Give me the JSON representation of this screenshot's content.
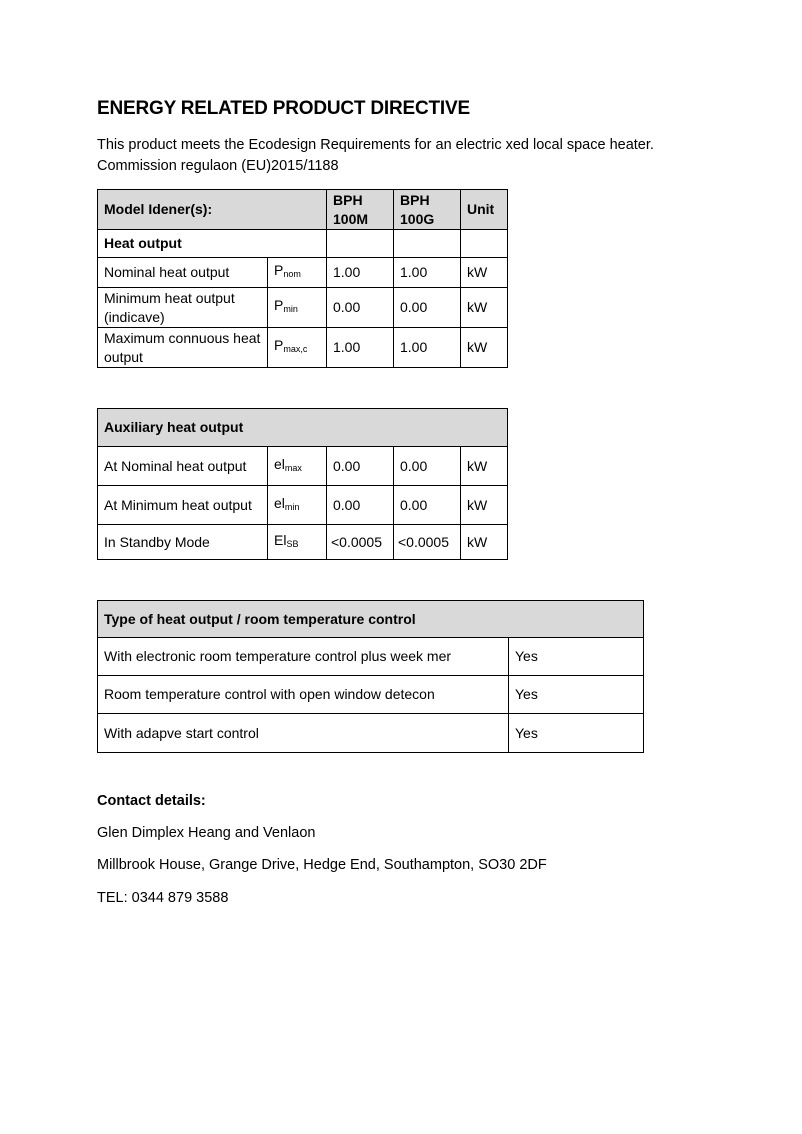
{
  "title": "ENERGY RELATED PRODUCT DIRECTIVE",
  "intro": [
    "This product meets the Ecodesign Requirements for an electric xed local space heater.",
    "Commission regulaon (EU)2015/1188"
  ],
  "table1": {
    "header": {
      "label": "Model Idener(s):",
      "col1": "BPH 100M",
      "col2": "BPH 100G",
      "unit": "Unit"
    },
    "section": "Heat output",
    "rows": [
      {
        "label": "Nominal heat output",
        "sym": "P",
        "sub": "nom",
        "v1": "1.00",
        "v2": "1.00",
        "unit": "kW"
      },
      {
        "label": "Minimum heat output (indicave)",
        "sym": "P",
        "sub": "min",
        "v1": "0.00",
        "v2": "0.00",
        "unit": "kW"
      },
      {
        "label": "Maximum connuous heat output",
        "sym": "P",
        "sub": "max,c",
        "v1": "1.00",
        "v2": "1.00",
        "unit": "kW"
      }
    ]
  },
  "table2": {
    "header": "Auxiliary heat output",
    "rows": [
      {
        "label": "At Nominal heat output",
        "sym": "el",
        "sub": "max",
        "v1": "0.00",
        "v2": "0.00",
        "unit": "kW"
      },
      {
        "label": "At Minimum heat output",
        "sym": "el",
        "sub": "min",
        "v1": "0.00",
        "v2": "0.00",
        "unit": "kW"
      },
      {
        "label": "In Standby Mode",
        "sym": "El",
        "sub": "SB",
        "v1": "<0.0005",
        "v2": "<0.0005",
        "unit": "kW"
      }
    ]
  },
  "table3": {
    "header": "Type of heat output / room temperature control",
    "rows": [
      {
        "label": "With electronic room temperature control plus week mer",
        "value": "Yes"
      },
      {
        "label": "Room temperature control with open window detecon",
        "value": "Yes"
      },
      {
        "label": "With adapve start control",
        "value": "Yes"
      }
    ]
  },
  "contact": {
    "heading": "Contact details:",
    "company": "Glen Dimplex Heang and Venlaon",
    "address": "Millbrook House, Grange Drive, Hedge End, Southampton, SO30 2DF",
    "tel": "TEL: 0344 879 3588"
  }
}
